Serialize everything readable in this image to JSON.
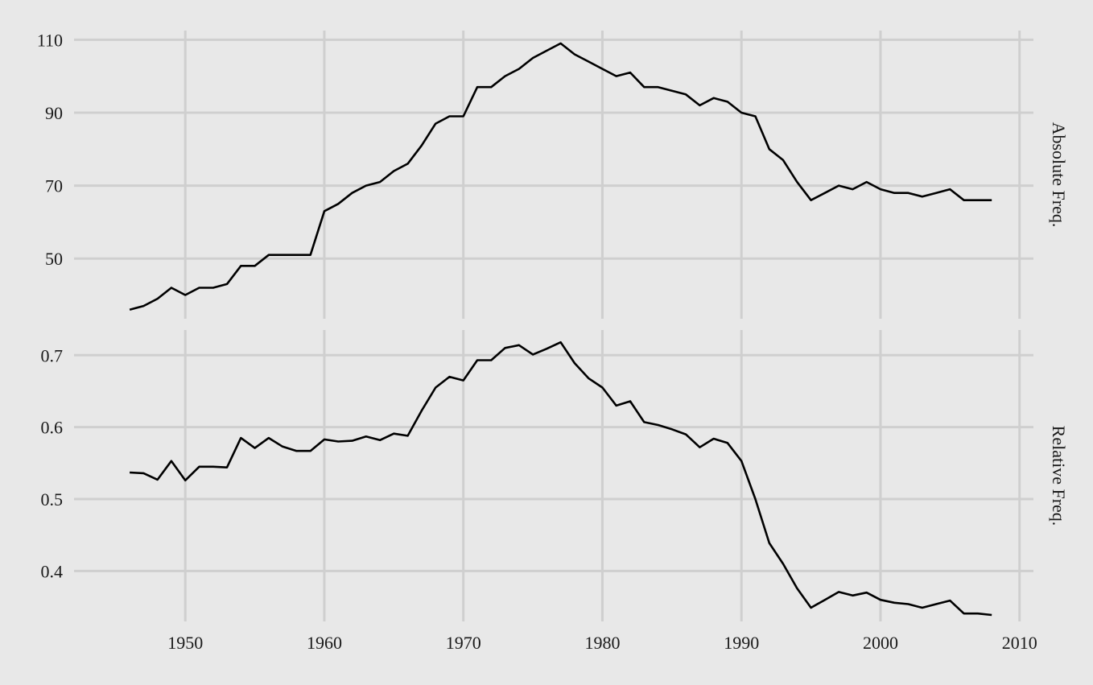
{
  "background_color": "#e8e8e8",
  "grid_color": "#cfcfcf",
  "line_color": "#000000",
  "chart_data": {
    "type": "line",
    "shared_x": {
      "label": "",
      "ticks": [
        1950,
        1960,
        1970,
        1980,
        1990,
        2000,
        2010
      ],
      "xlim": [
        1942,
        2011
      ]
    },
    "x": [
      1946,
      1947,
      1948,
      1949,
      1950,
      1951,
      1952,
      1953,
      1954,
      1955,
      1956,
      1957,
      1958,
      1959,
      1960,
      1961,
      1962,
      1963,
      1964,
      1965,
      1966,
      1967,
      1968,
      1969,
      1970,
      1971,
      1972,
      1973,
      1974,
      1975,
      1976,
      1977,
      1978,
      1979,
      1980,
      1981,
      1982,
      1983,
      1984,
      1985,
      1986,
      1987,
      1988,
      1989,
      1990,
      1991,
      1992,
      1993,
      1994,
      1995,
      1996,
      1997,
      1998,
      1999,
      2000,
      2001,
      2002,
      2003,
      2004,
      2005,
      2006,
      2007,
      2008
    ],
    "panels": [
      {
        "strip_label": "Absolute Freq.",
        "ylim": [
          33.5,
          112.5
        ],
        "y_ticks": [
          50,
          70,
          90,
          110
        ],
        "values": [
          36,
          37,
          39,
          42,
          40,
          42,
          42,
          43,
          48,
          48,
          51,
          51,
          51,
          51,
          63,
          65,
          68,
          70,
          71,
          74,
          76,
          81,
          87,
          89,
          89,
          97,
          97,
          100,
          102,
          105,
          107,
          109,
          106,
          104,
          102,
          100,
          101,
          97,
          97,
          96,
          95,
          92,
          94,
          93,
          90,
          89,
          80,
          77,
          71,
          66,
          68,
          70,
          69,
          71,
          69,
          68,
          68,
          67,
          68,
          69,
          66,
          66,
          66
        ]
      },
      {
        "strip_label": "Relative Freq.",
        "ylim": [
          0.33,
          0.735
        ],
        "y_ticks": [
          0.4,
          0.5,
          0.6,
          0.7
        ],
        "values": [
          0.537,
          0.536,
          0.527,
          0.553,
          0.526,
          0.545,
          0.545,
          0.544,
          0.585,
          0.571,
          0.585,
          0.573,
          0.567,
          0.567,
          0.583,
          0.58,
          0.581,
          0.587,
          0.582,
          0.591,
          0.588,
          0.623,
          0.655,
          0.67,
          0.665,
          0.693,
          0.693,
          0.71,
          0.714,
          0.701,
          0.709,
          0.718,
          0.689,
          0.668,
          0.655,
          0.63,
          0.636,
          0.607,
          0.603,
          0.597,
          0.59,
          0.572,
          0.584,
          0.578,
          0.553,
          0.5,
          0.439,
          0.41,
          0.376,
          0.349,
          0.36,
          0.371,
          0.366,
          0.37,
          0.36,
          0.356,
          0.354,
          0.349,
          0.354,
          0.359,
          0.341,
          0.341,
          0.339
        ]
      }
    ]
  }
}
